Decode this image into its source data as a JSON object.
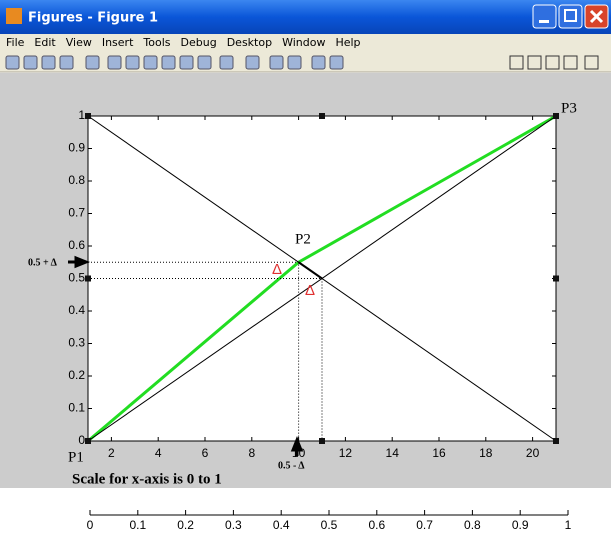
{
  "window": {
    "title": "Figures - Figure 1",
    "menu": [
      "File",
      "Edit",
      "View",
      "Insert",
      "Tools",
      "Debug",
      "Desktop",
      "Window",
      "Help"
    ]
  },
  "chart_data": [
    {
      "type": "line",
      "xlim": [
        1,
        21
      ],
      "xticks": [
        2,
        4,
        6,
        8,
        10,
        12,
        14,
        16,
        18,
        20
      ],
      "ylim": [
        0,
        1
      ],
      "yticks": [
        0,
        0.1,
        0.2,
        0.3,
        0.4,
        0.5,
        0.6,
        0.7,
        0.8,
        0.9,
        1
      ],
      "series": [
        {
          "color": "#22dd22",
          "x": [
            1,
            10,
            21
          ],
          "values": [
            0,
            0.55,
            1
          ]
        },
        {
          "color": "#000000",
          "x": [
            1,
            21
          ],
          "values": [
            0,
            1
          ]
        },
        {
          "color": "#000000",
          "x": [
            1,
            21
          ],
          "values": [
            1,
            0
          ]
        },
        {
          "color": "#000000",
          "x": [
            10,
            11
          ],
          "values": [
            0.55,
            0.5
          ]
        },
        {
          "color": "#000000",
          "dotted": true,
          "x": [
            1,
            10,
            10
          ],
          "values": [
            0.55,
            0.55,
            0
          ]
        },
        {
          "color": "#000000",
          "dotted": true,
          "x": [
            1,
            11,
            11
          ],
          "values": [
            0.5,
            0.5,
            0
          ]
        }
      ],
      "annotations": [
        "P1",
        "P2",
        "P3",
        "0.5 + Δ",
        "0.5 - Δ",
        "Δ",
        "Δ"
      ]
    },
    {
      "type": "axis",
      "title": "Scale for x-axis is 0 to 1",
      "xlim": [
        0,
        1
      ],
      "xticks": [
        0,
        0.1,
        0.2,
        0.3,
        0.4,
        0.5,
        0.6,
        0.7,
        0.8,
        0.9,
        1
      ]
    }
  ]
}
